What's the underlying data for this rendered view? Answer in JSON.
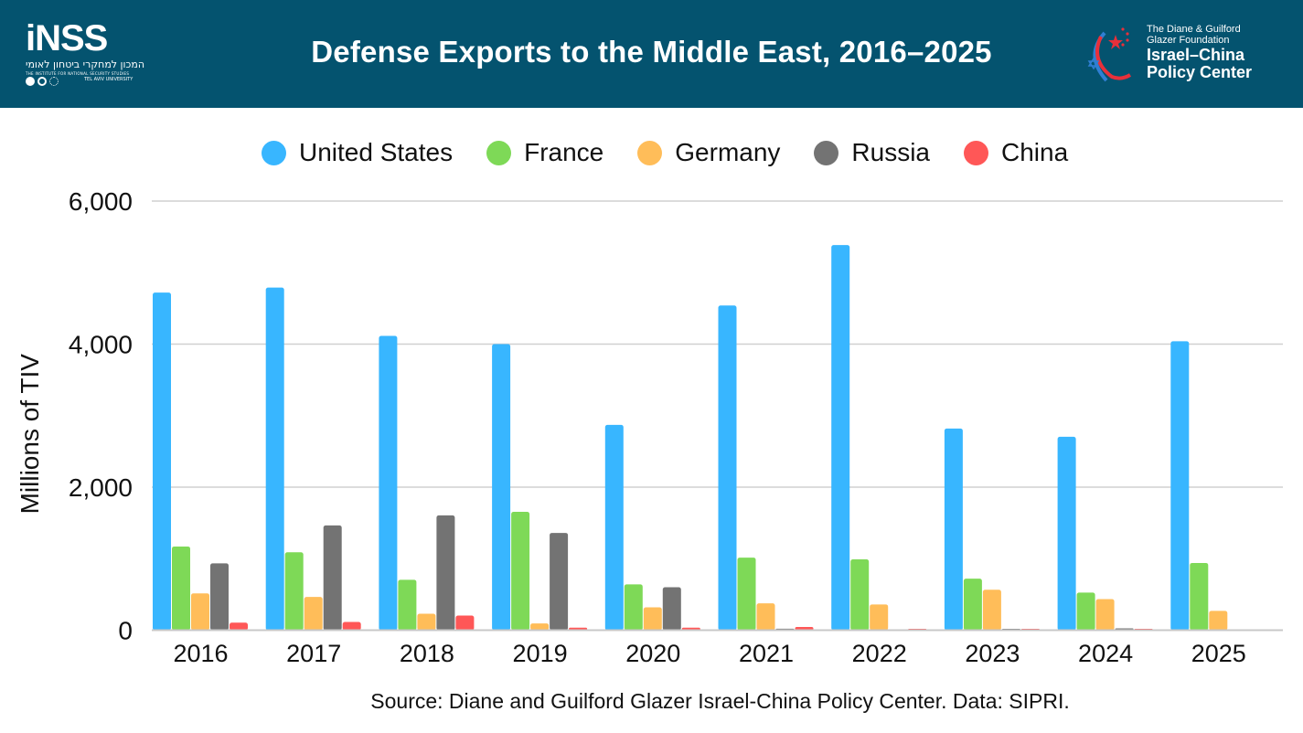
{
  "header": {
    "title": "Defense Exports to the Middle East, 2016–2025",
    "background_color": "#04536f",
    "left_logo": {
      "name": "iNSS",
      "hebrew": "המכון למחקרי ביטחון לאומי",
      "subtitle": "THE INSTITUTE FOR NATIONAL SECURITY STUDIES",
      "university": "TEL AVIV UNIVERSITY"
    },
    "right_logo": {
      "line1": "The Diane & Guilford",
      "line2": "Glazer Foundation",
      "line3": "Israel–China",
      "line4": "Policy Center"
    }
  },
  "legend": [
    {
      "label": "United States",
      "color": "#38b6ff"
    },
    {
      "label": "France",
      "color": "#7ed957"
    },
    {
      "label": "Germany",
      "color": "#ffbd59"
    },
    {
      "label": "Russia",
      "color": "#737373"
    },
    {
      "label": "China",
      "color": "#ff5757"
    }
  ],
  "source": "Source: Diane and Guilford Glazer Israel-China Policy Center. Data: SIPRI.",
  "chart_data": {
    "type": "bar",
    "title": "Defense Exports to the Middle East, 2016–2025",
    "xlabel": "",
    "ylabel": "Millions of TIV",
    "ylim": [
      0,
      6000
    ],
    "yticks": [
      0,
      2000,
      4000,
      6000
    ],
    "ytick_labels": [
      "0",
      "2,000",
      "4,000",
      "6,000"
    ],
    "grid": true,
    "legend_position": "top",
    "categories": [
      "2016",
      "2017",
      "2018",
      "2019",
      "2020",
      "2021",
      "2022",
      "2023",
      "2024",
      "2025"
    ],
    "series": [
      {
        "name": "United States",
        "color": "#38b6ff",
        "values": [
          4720,
          4790,
          4115,
          4000,
          2870,
          4540,
          5385,
          2820,
          2705,
          4040
        ]
      },
      {
        "name": "France",
        "color": "#7ed957",
        "values": [
          1170,
          1090,
          705,
          1655,
          640,
          1015,
          990,
          720,
          525,
          940
        ]
      },
      {
        "name": "Germany",
        "color": "#ffbd59",
        "values": [
          515,
          465,
          230,
          95,
          320,
          375,
          360,
          565,
          435,
          270
        ]
      },
      {
        "name": "Russia",
        "color": "#737373",
        "values": [
          935,
          1465,
          1605,
          1360,
          600,
          20,
          0,
          10,
          25,
          0
        ]
      },
      {
        "name": "China",
        "color": "#ff5757",
        "values": [
          105,
          115,
          205,
          35,
          35,
          45,
          10,
          5,
          8,
          0
        ]
      }
    ]
  }
}
